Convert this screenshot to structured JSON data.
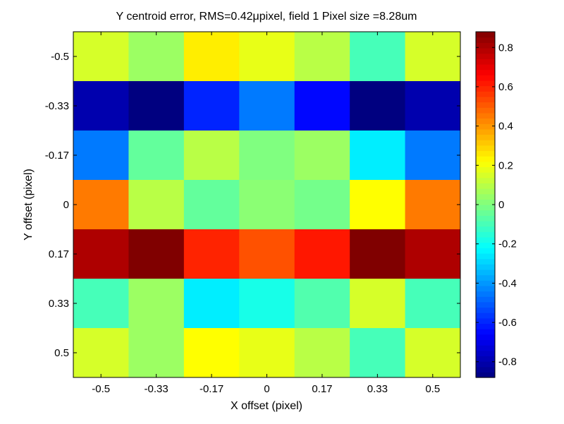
{
  "chart_data": {
    "type": "heatmap",
    "title": "Y centroid error, RMS=0.42μpixel, field 1 Pixel size =8.28um",
    "xlabel": "X offset (pixel)",
    "ylabel": "Y offset (pixel)",
    "x_ticks": [
      "-0.5",
      "-0.33",
      "-0.17",
      "0",
      "0.17",
      "0.33",
      "0.5"
    ],
    "y_ticks": [
      "-0.5",
      "-0.33",
      "-0.17",
      "0",
      "0.17",
      "0.33",
      "0.5"
    ],
    "x": [
      -0.5,
      -0.33,
      -0.17,
      0,
      0.17,
      0.33,
      0.5
    ],
    "y": [
      -0.5,
      -0.33,
      -0.17,
      0,
      0.17,
      0.33,
      0.5
    ],
    "values": [
      [
        0.15,
        0.05,
        0.25,
        0.18,
        0.1,
        -0.1,
        0.15
      ],
      [
        -0.8,
        -0.88,
        -0.6,
        -0.45,
        -0.65,
        -0.88,
        -0.8
      ],
      [
        -0.45,
        -0.05,
        0.1,
        0.0,
        0.05,
        -0.25,
        -0.45
      ],
      [
        0.45,
        0.1,
        -0.05,
        0.02,
        -0.02,
        0.22,
        0.45
      ],
      [
        0.8,
        0.88,
        0.6,
        0.52,
        0.62,
        0.88,
        0.8
      ],
      [
        -0.1,
        0.05,
        -0.25,
        -0.18,
        -0.08,
        0.15,
        -0.1
      ],
      [
        0.15,
        0.05,
        0.22,
        0.18,
        0.1,
        -0.1,
        0.15
      ]
    ],
    "colorbar": {
      "colormap": "jet",
      "clim": [
        -0.88,
        0.88
      ],
      "ticks": [
        -0.8,
        -0.6,
        -0.4,
        -0.2,
        0,
        0.2,
        0.4,
        0.6,
        0.8
      ],
      "tick_labels": [
        "-0.8",
        "-0.6",
        "-0.4",
        "-0.2",
        "0",
        "0.2",
        "0.4",
        "0.6",
        "0.8"
      ]
    },
    "grid": false
  }
}
